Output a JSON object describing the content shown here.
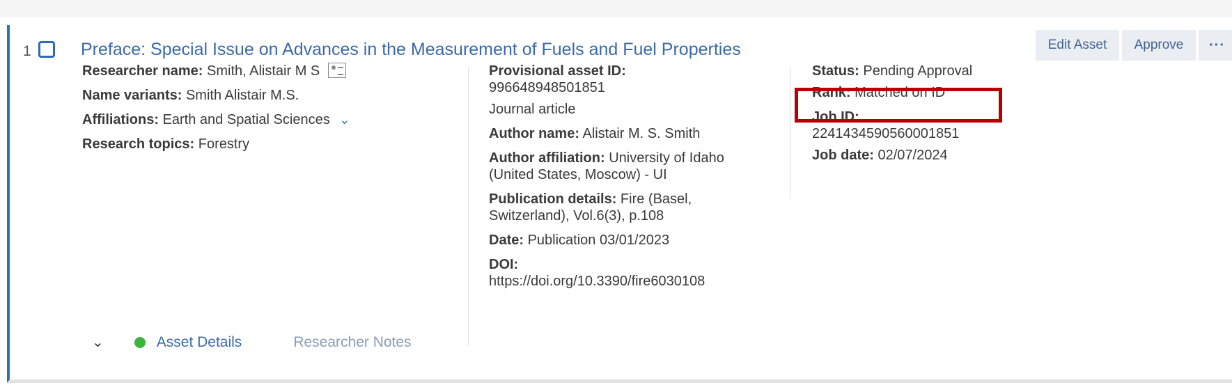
{
  "record": {
    "number": "1",
    "title": "Preface: Special Issue on Advances in the Measurement of Fuels and Fuel Properties",
    "actions": {
      "edit_label": "Edit Asset",
      "approve_label": "Approve",
      "more_label": "···"
    },
    "researcher": {
      "name_label": "Researcher name:",
      "name_value": "Smith, Alistair M S",
      "variants_label": "Name variants:",
      "variants_value": "Smith Alistair M.S.",
      "affiliations_label": "Affiliations:",
      "affiliations_value": "Earth and Spatial Sciences",
      "topics_label": "Research topics:",
      "topics_value": "Forestry"
    },
    "asset": {
      "provisional_id_label": "Provisional asset ID:",
      "provisional_id_value": "996648948501851",
      "type": "Journal article",
      "author_name_label": "Author name:",
      "author_name_value": "Alistair M. S. Smith",
      "author_affiliation_label": "Author affiliation:",
      "author_affiliation_line1": "University of Idaho",
      "author_affiliation_line2": "(United States, Moscow) - UI",
      "publication_label": "Publication details:",
      "publication_line1": "Fire (Basel,",
      "publication_line2": "Switzerland), Vol.6(3), p.108",
      "date_label": "Date:",
      "date_value": "Publication 03/01/2023",
      "doi_label": "DOI:",
      "doi_value": "https://doi.org/10.3390/fire6030108"
    },
    "job": {
      "status_label": "Status:",
      "status_value": "Pending Approval",
      "rank_label": "Rank:",
      "rank_value": "Matched on ID",
      "job_id_label": "Job ID:",
      "job_id_value": "2241434590560001851",
      "job_date_label": "Job date:",
      "job_date_value": "02/07/2024"
    },
    "tabs": {
      "asset_details": "Asset Details",
      "researcher_notes": "Researcher Notes"
    },
    "colors": {
      "accent": "#2a74ad",
      "highlight": "#b40000",
      "status_dot": "#3cb53c"
    }
  }
}
